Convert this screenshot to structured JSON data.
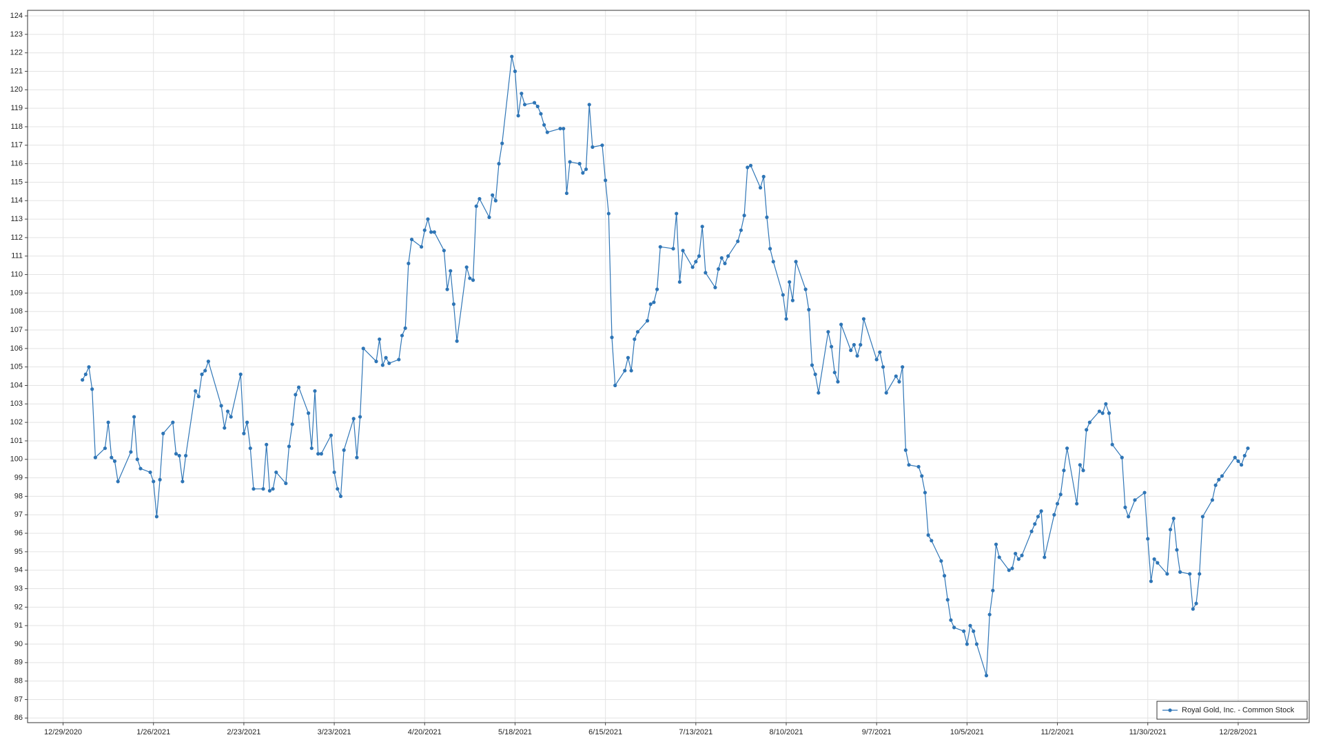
{
  "chart_data": {
    "type": "line",
    "x": [
      "1/4/2021",
      "1/5/2021",
      "1/6/2021",
      "1/7/2021",
      "1/8/2021",
      "1/11/2021",
      "1/12/2021",
      "1/13/2021",
      "1/14/2021",
      "1/15/2021",
      "1/19/2021",
      "1/20/2021",
      "1/21/2021",
      "1/22/2021",
      "1/25/2021",
      "1/26/2021",
      "1/27/2021",
      "1/28/2021",
      "1/29/2021",
      "2/1/2021",
      "2/2/2021",
      "2/3/2021",
      "2/4/2021",
      "2/5/2021",
      "2/8/2021",
      "2/9/2021",
      "2/10/2021",
      "2/11/2021",
      "2/12/2021",
      "2/16/2021",
      "2/17/2021",
      "2/18/2021",
      "2/19/2021",
      "2/22/2021",
      "2/23/2021",
      "2/24/2021",
      "2/25/2021",
      "2/26/2021",
      "3/1/2021",
      "3/2/2021",
      "3/3/2021",
      "3/4/2021",
      "3/5/2021",
      "3/8/2021",
      "3/9/2021",
      "3/10/2021",
      "3/11/2021",
      "3/12/2021",
      "3/15/2021",
      "3/16/2021",
      "3/17/2021",
      "3/18/2021",
      "3/19/2021",
      "3/22/2021",
      "3/23/2021",
      "3/24/2021",
      "3/25/2021",
      "3/26/2021",
      "3/29/2021",
      "3/30/2021",
      "3/31/2021",
      "4/1/2021",
      "4/5/2021",
      "4/6/2021",
      "4/7/2021",
      "4/8/2021",
      "4/9/2021",
      "4/12/2021",
      "4/13/2021",
      "4/14/2021",
      "4/15/2021",
      "4/16/2021",
      "4/19/2021",
      "4/20/2021",
      "4/21/2021",
      "4/22/2021",
      "4/23/2021",
      "4/26/2021",
      "4/27/2021",
      "4/28/2021",
      "4/29/2021",
      "4/30/2021",
      "5/3/2021",
      "5/4/2021",
      "5/5/2021",
      "5/6/2021",
      "5/7/2021",
      "5/10/2021",
      "5/11/2021",
      "5/12/2021",
      "5/13/2021",
      "5/14/2021",
      "5/17/2021",
      "5/18/2021",
      "5/19/2021",
      "5/20/2021",
      "5/21/2021",
      "5/24/2021",
      "5/25/2021",
      "5/26/2021",
      "5/27/2021",
      "5/28/2021",
      "6/1/2021",
      "6/2/2021",
      "6/3/2021",
      "6/4/2021",
      "6/7/2021",
      "6/8/2021",
      "6/9/2021",
      "6/10/2021",
      "6/11/2021",
      "6/14/2021",
      "6/15/2021",
      "6/16/2021",
      "6/17/2021",
      "6/18/2021",
      "6/21/2021",
      "6/22/2021",
      "6/23/2021",
      "6/24/2021",
      "6/25/2021",
      "6/28/2021",
      "6/29/2021",
      "6/30/2021",
      "7/1/2021",
      "7/2/2021",
      "7/6/2021",
      "7/7/2021",
      "7/8/2021",
      "7/9/2021",
      "7/12/2021",
      "7/13/2021",
      "7/14/2021",
      "7/15/2021",
      "7/16/2021",
      "7/19/2021",
      "7/20/2021",
      "7/21/2021",
      "7/22/2021",
      "7/23/2021",
      "7/26/2021",
      "7/27/2021",
      "7/28/2021",
      "7/29/2021",
      "7/30/2021",
      "8/2/2021",
      "8/3/2021",
      "8/4/2021",
      "8/5/2021",
      "8/6/2021",
      "8/9/2021",
      "8/10/2021",
      "8/11/2021",
      "8/12/2021",
      "8/13/2021",
      "8/16/2021",
      "8/17/2021",
      "8/18/2021",
      "8/19/2021",
      "8/20/2021",
      "8/23/2021",
      "8/24/2021",
      "8/25/2021",
      "8/26/2021",
      "8/27/2021",
      "8/30/2021",
      "8/31/2021",
      "9/1/2021",
      "9/2/2021",
      "9/3/2021",
      "9/7/2021",
      "9/8/2021",
      "9/9/2021",
      "9/10/2021",
      "9/13/2021",
      "9/14/2021",
      "9/15/2021",
      "9/16/2021",
      "9/17/2021",
      "9/20/2021",
      "9/21/2021",
      "9/22/2021",
      "9/23/2021",
      "9/24/2021",
      "9/27/2021",
      "9/28/2021",
      "9/29/2021",
      "9/30/2021",
      "10/1/2021",
      "10/4/2021",
      "10/5/2021",
      "10/6/2021",
      "10/7/2021",
      "10/8/2021",
      "10/11/2021",
      "10/12/2021",
      "10/13/2021",
      "10/14/2021",
      "10/15/2021",
      "10/18/2021",
      "10/19/2021",
      "10/20/2021",
      "10/21/2021",
      "10/22/2021",
      "10/25/2021",
      "10/26/2021",
      "10/27/2021",
      "10/28/2021",
      "10/29/2021",
      "11/1/2021",
      "11/2/2021",
      "11/3/2021",
      "11/4/2021",
      "11/5/2021",
      "11/8/2021",
      "11/9/2021",
      "11/10/2021",
      "11/11/2021",
      "11/12/2021",
      "11/15/2021",
      "11/16/2021",
      "11/17/2021",
      "11/18/2021",
      "11/19/2021",
      "11/22/2021",
      "11/23/2021",
      "11/24/2021",
      "11/26/2021",
      "11/29/2021",
      "11/30/2021",
      "12/1/2021",
      "12/2/2021",
      "12/3/2021",
      "12/6/2021",
      "12/7/2021",
      "12/8/2021",
      "12/9/2021",
      "12/10/2021",
      "12/13/2021",
      "12/14/2021",
      "12/15/2021",
      "12/16/2021",
      "12/17/2021",
      "12/20/2021",
      "12/21/2021",
      "12/22/2021",
      "12/23/2021",
      "12/27/2021",
      "12/28/2021",
      "12/29/2021",
      "12/30/2021",
      "12/31/2021"
    ],
    "series": [
      {
        "name": "Royal Gold, Inc. - Common Stock",
        "color": "#2e75b6",
        "values": [
          104.3,
          104.6,
          105.0,
          103.8,
          100.1,
          100.6,
          102.0,
          100.1,
          99.9,
          98.8,
          100.4,
          102.3,
          100.0,
          99.5,
          99.3,
          98.8,
          96.9,
          98.9,
          101.4,
          102.0,
          100.3,
          100.2,
          98.8,
          100.2,
          103.7,
          103.4,
          104.6,
          104.8,
          105.3,
          102.9,
          101.7,
          102.6,
          102.3,
          104.6,
          101.4,
          102.0,
          100.6,
          98.4,
          98.4,
          100.8,
          98.3,
          98.4,
          99.3,
          98.7,
          100.7,
          101.9,
          103.5,
          103.9,
          102.5,
          100.6,
          103.7,
          100.3,
          100.3,
          101.3,
          99.3,
          98.4,
          98.0,
          100.5,
          102.2,
          100.1,
          102.3,
          106.0,
          105.3,
          106.5,
          105.1,
          105.5,
          105.2,
          105.4,
          106.7,
          107.1,
          110.6,
          111.9,
          111.5,
          112.4,
          113.0,
          112.3,
          112.3,
          111.3,
          109.2,
          110.2,
          108.4,
          106.4,
          110.4,
          109.8,
          109.7,
          113.7,
          114.1,
          113.1,
          114.3,
          114.0,
          116.0,
          117.1,
          121.8,
          121.0,
          118.6,
          119.8,
          119.2,
          119.3,
          119.1,
          118.7,
          118.1,
          117.7,
          117.9,
          117.9,
          114.4,
          116.1,
          116.0,
          115.5,
          115.7,
          119.2,
          116.9,
          117.0,
          115.1,
          113.3,
          106.6,
          104.0,
          104.8,
          105.5,
          104.8,
          106.5,
          106.9,
          107.5,
          108.4,
          108.5,
          109.2,
          111.5,
          111.4,
          113.3,
          109.6,
          111.3,
          110.4,
          110.7,
          111.0,
          112.6,
          110.1,
          109.3,
          110.3,
          110.9,
          110.6,
          111.0,
          111.8,
          112.4,
          113.2,
          115.8,
          115.9,
          114.7,
          115.3,
          113.1,
          111.4,
          110.7,
          108.9,
          107.6,
          109.6,
          108.6,
          110.7,
          109.2,
          108.1,
          105.1,
          104.6,
          103.6,
          106.9,
          106.1,
          104.7,
          104.2,
          107.3,
          105.9,
          106.2,
          105.6,
          106.2,
          107.6,
          105.4,
          105.8,
          105.0,
          103.6,
          104.5,
          104.2,
          105.0,
          100.5,
          99.7,
          99.6,
          99.1,
          98.2,
          95.9,
          95.6,
          94.5,
          93.7,
          92.4,
          91.3,
          90.9,
          90.7,
          90.0,
          91.0,
          90.7,
          90.0,
          88.3,
          91.6,
          92.9,
          95.4,
          94.7,
          94.0,
          94.1,
          94.9,
          94.6,
          94.8,
          96.1,
          96.5,
          96.9,
          97.2,
          94.7,
          97.0,
          97.6,
          98.1,
          99.4,
          100.6,
          97.6,
          99.7,
          99.4,
          101.6,
          102.0,
          102.6,
          102.5,
          103.0,
          102.5,
          100.8,
          100.1,
          97.4,
          96.9,
          97.8,
          98.2,
          95.7,
          93.4,
          94.6,
          94.4,
          93.8,
          96.2,
          96.8,
          95.1,
          93.9,
          93.8,
          91.9,
          92.2,
          93.8,
          96.9,
          97.8,
          98.6,
          98.9,
          99.1,
          100.1,
          99.9,
          99.7,
          100.2,
          100.6
        ]
      }
    ],
    "xlim": [
      "12/18/2020",
      "1/19/2022"
    ],
    "xticks": [
      "12/29/2020",
      "1/26/2021",
      "2/23/2021",
      "3/23/2021",
      "4/20/2021",
      "5/18/2021",
      "6/15/2021",
      "7/13/2021",
      "8/10/2021",
      "9/7/2021",
      "10/5/2021",
      "11/2/2021",
      "11/30/2021",
      "12/28/2021"
    ],
    "ylim": [
      85.75,
      124.3
    ],
    "yticks": [
      86,
      87,
      88,
      89,
      90,
      91,
      92,
      93,
      94,
      95,
      96,
      97,
      98,
      99,
      100,
      101,
      102,
      103,
      104,
      105,
      106,
      107,
      108,
      109,
      110,
      111,
      112,
      113,
      114,
      115,
      116,
      117,
      118,
      119,
      120,
      121,
      122,
      123,
      124
    ],
    "grid": true,
    "legend": "lower right"
  }
}
